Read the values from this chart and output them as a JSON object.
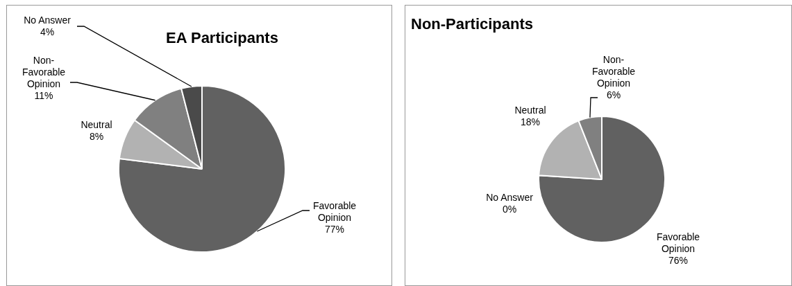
{
  "chart_data": [
    {
      "type": "pie",
      "title": "EA Participants",
      "categories": [
        "Favorable Opinion",
        "Neutral",
        "Non-Favorable Opinion",
        "No Answer"
      ],
      "values": [
        77,
        8,
        11,
        4
      ],
      "value_labels": [
        "77%",
        "8%",
        "11%",
        "4%"
      ],
      "colors": [
        "#616161",
        "#b2b2b2",
        "#808080",
        "#4a4a4a"
      ],
      "legend": false
    },
    {
      "type": "pie",
      "title": "Non-Participants",
      "categories": [
        "Favorable Opinion",
        "No Answer",
        "Neutral",
        "Non-Favorable Opinion"
      ],
      "values": [
        76,
        0,
        18,
        6
      ],
      "value_labels": [
        "76%",
        "0%",
        "18%",
        "6%"
      ],
      "colors": [
        "#616161",
        "#4a4a4a",
        "#b2b2b2",
        "#808080"
      ],
      "legend": false
    }
  ]
}
